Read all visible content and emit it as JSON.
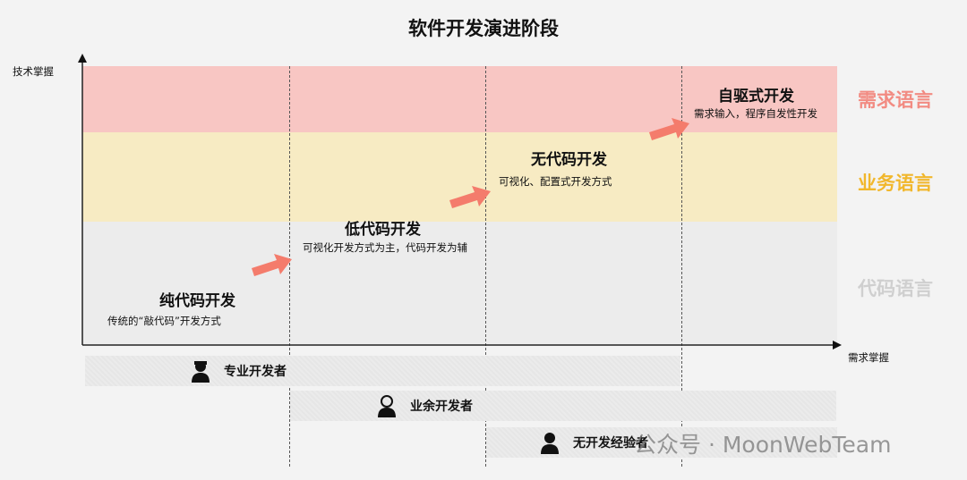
{
  "title": "软件开发演进阶段",
  "axes": {
    "y_label": "技术掌握",
    "x_label": "需求掌握"
  },
  "languages": [
    {
      "label": "需求语言",
      "color": "#f28b82",
      "band_color": "#f8c6c3"
    },
    {
      "label": "业务语言",
      "color": "#f1b72c",
      "band_color": "#f7ebc3"
    },
    {
      "label": "代码语言",
      "color": "#cfcfcf",
      "band_color": "#efefef"
    }
  ],
  "stages": [
    {
      "title": "纯代码开发",
      "desc": "传统的“敲代码”开发方式"
    },
    {
      "title": "低代码开发",
      "desc": "可视化开发方式为主，代码开发为辅"
    },
    {
      "title": "无代码开发",
      "desc": "可视化、配置式开发方式"
    },
    {
      "title": "自驱式开发",
      "desc": "需求输入，程序自发性开发"
    }
  ],
  "arrow_color": "#f47c6c",
  "developers": [
    {
      "label": "专业开发者",
      "icon": "worker-icon"
    },
    {
      "label": "业余开发者",
      "icon": "person-icon"
    },
    {
      "label": "无开发经验者",
      "icon": "person-chat-icon"
    }
  ],
  "watermark": "公众号 · MoonWebTeam"
}
